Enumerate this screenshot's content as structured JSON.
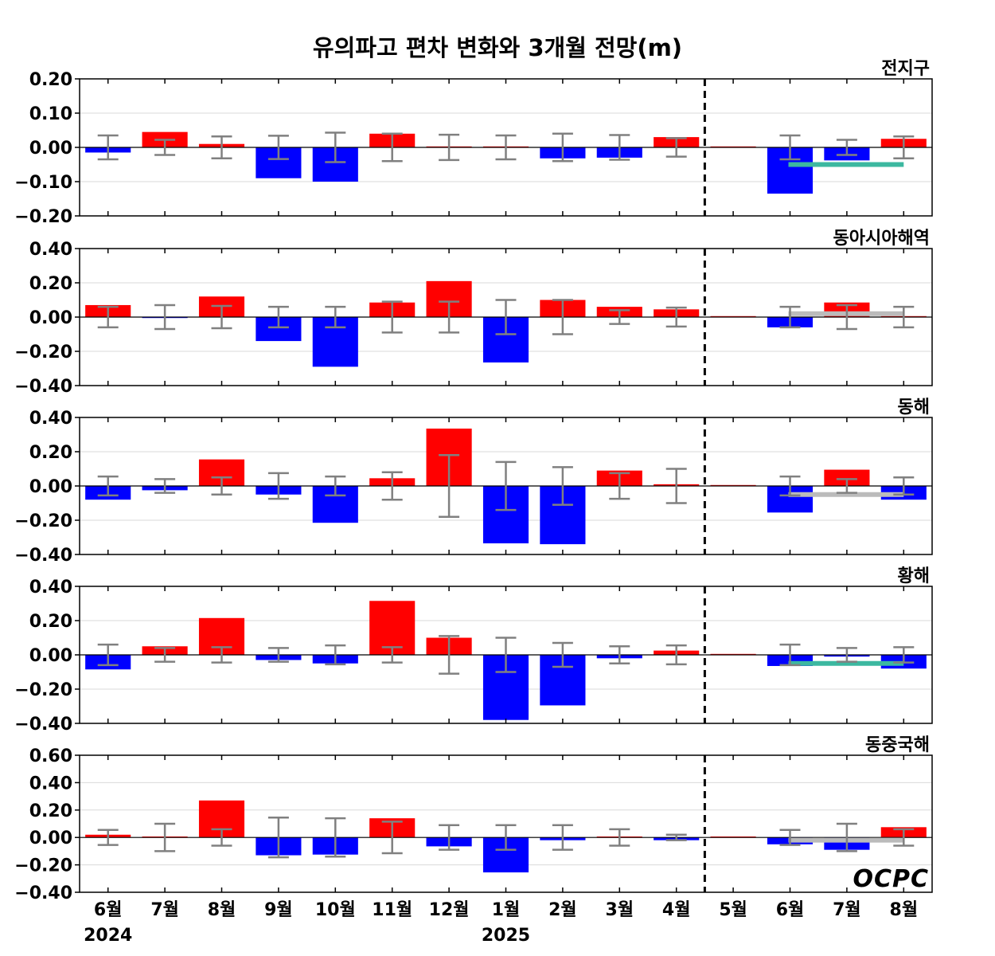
{
  "chart_data": {
    "type": "bar",
    "title": "유의파고 편차 변화와 3개월 전망(m)",
    "logo": "OCPC",
    "categories": [
      "6월",
      "7월",
      "8월",
      "9월",
      "10월",
      "11월",
      "12월",
      "1월",
      "2월",
      "3월",
      "4월",
      "5월",
      "6월",
      "7월",
      "8월"
    ],
    "year_labels": [
      {
        "label": "2024",
        "category_index": 0
      },
      {
        "label": "2025",
        "category_index": 7
      }
    ],
    "forecast_divider_between": [
      10,
      11
    ],
    "colors": {
      "positive": "#ff0000",
      "negative": "#0000ff",
      "errorbar": "#808080",
      "forecast_teal": "#3cb8a0",
      "forecast_gray": "#bbbbbb"
    },
    "panels": [
      {
        "name": "전지구",
        "ylim": [
          -0.2,
          0.2
        ],
        "yticks": [
          "0.20",
          "0.10",
          "0.00",
          "−0.10",
          "−0.20"
        ],
        "ytick_values": [
          0.2,
          0.1,
          0,
          -0.1,
          -0.2
        ],
        "values": [
          -0.015,
          0.045,
          0.01,
          -0.09,
          -0.1,
          0.04,
          0.002,
          0.002,
          -0.032,
          -0.03,
          0.03,
          0.0,
          -0.135,
          -0.038,
          0.025
        ],
        "errors": [
          0.035,
          0.022,
          0.032,
          0.034,
          0.043,
          0.04,
          0.037,
          0.035,
          0.04,
          0.036,
          0.027,
          null,
          0.035,
          0.022,
          0.032
        ],
        "forecast_line": {
          "value": -0.05,
          "color": "teal"
        }
      },
      {
        "name": "동아시아해역",
        "ylim": [
          -0.4,
          0.4
        ],
        "yticks": [
          "0.40",
          "0.20",
          "0.00",
          "−0.20",
          "−0.40"
        ],
        "ytick_values": [
          0.4,
          0.2,
          0,
          -0.2,
          -0.4
        ],
        "values": [
          0.07,
          -0.005,
          0.12,
          -0.14,
          -0.29,
          0.085,
          0.21,
          -0.265,
          0.1,
          0.06,
          0.045,
          0.0,
          -0.06,
          0.085,
          0.005
        ],
        "errors": [
          0.06,
          0.07,
          0.065,
          0.06,
          0.06,
          0.09,
          0.09,
          0.1,
          0.1,
          0.04,
          0.055,
          null,
          0.06,
          0.07,
          0.06
        ],
        "forecast_line": {
          "value": 0.02,
          "color": "gray"
        }
      },
      {
        "name": "동해",
        "ylim": [
          -0.4,
          0.4
        ],
        "yticks": [
          "0.40",
          "0.20",
          "0.00",
          "−0.20",
          "−0.40"
        ],
        "ytick_values": [
          0.4,
          0.2,
          0,
          -0.2,
          -0.4
        ],
        "values": [
          -0.08,
          -0.025,
          0.155,
          -0.05,
          -0.215,
          0.045,
          0.335,
          -0.335,
          -0.34,
          0.09,
          0.01,
          0.0,
          -0.155,
          0.095,
          -0.08
        ],
        "errors": [
          0.055,
          0.04,
          0.05,
          0.075,
          0.055,
          0.08,
          0.18,
          0.14,
          0.11,
          0.075,
          0.1,
          null,
          0.055,
          0.04,
          0.05
        ],
        "forecast_line": {
          "value": -0.05,
          "color": "gray"
        }
      },
      {
        "name": "황해",
        "ylim": [
          -0.4,
          0.4
        ],
        "yticks": [
          "0.40",
          "0.20",
          "0.00",
          "−0.20",
          "−0.40"
        ],
        "ytick_values": [
          0.4,
          0.2,
          0,
          -0.2,
          -0.4
        ],
        "values": [
          -0.085,
          0.05,
          0.215,
          -0.03,
          -0.05,
          0.315,
          0.1,
          -0.38,
          -0.295,
          -0.02,
          0.025,
          0.0,
          -0.065,
          -0.01,
          -0.08
        ],
        "errors": [
          0.06,
          0.04,
          0.045,
          0.04,
          0.055,
          0.045,
          0.11,
          0.1,
          0.07,
          0.05,
          0.055,
          null,
          0.06,
          0.04,
          0.045
        ],
        "forecast_line": {
          "value": -0.05,
          "color": "teal"
        }
      },
      {
        "name": "동중국해",
        "ylim": [
          -0.4,
          0.6
        ],
        "yticks": [
          "0.60",
          "0.40",
          "0.20",
          "0.00",
          "−0.20",
          "−0.40"
        ],
        "ytick_values": [
          0.6,
          0.4,
          0.2,
          0,
          -0.2,
          -0.4
        ],
        "values": [
          0.02,
          0.003,
          0.27,
          -0.13,
          -0.125,
          0.14,
          -0.065,
          -0.255,
          -0.02,
          0.003,
          -0.02,
          0.0,
          -0.05,
          -0.09,
          0.075
        ],
        "errors": [
          0.055,
          0.1,
          0.06,
          0.145,
          0.14,
          0.115,
          0.09,
          0.09,
          0.09,
          0.06,
          0.02,
          null,
          0.055,
          0.1,
          0.06
        ],
        "forecast_line": {
          "value": -0.02,
          "color": "gray"
        }
      }
    ]
  }
}
